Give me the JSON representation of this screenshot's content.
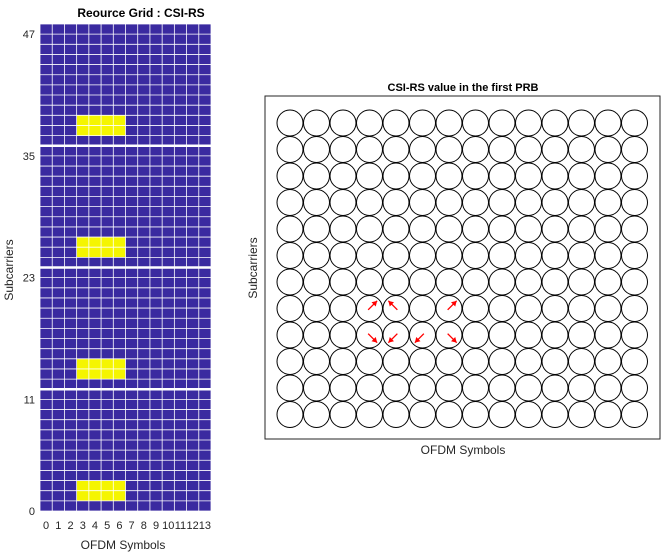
{
  "chart_data": [
    {
      "type": "heatmap",
      "title": "Reource Grid : CSI-RS",
      "xlabel": "OFDM Symbols",
      "ylabel": "Subcarriers",
      "n_symbols": 14,
      "n_subcarriers": 48,
      "x_ticks": [
        "0",
        "1",
        "2",
        "3",
        "4",
        "5",
        "6",
        "7",
        "8",
        "9",
        "10",
        "11",
        "12",
        "13"
      ],
      "y_ticks": [
        "0",
        "11",
        "23",
        "35",
        "47"
      ],
      "background_color": "#3a2aa0",
      "grid_color": "#ffffff",
      "highlight_color": "#f5f500",
      "csi_rs_regions": [
        {
          "symbols": [
            3,
            6
          ],
          "subcarriers": [
            1,
            2
          ]
        },
        {
          "symbols": [
            3,
            6
          ],
          "subcarriers": [
            13,
            14
          ]
        },
        {
          "symbols": [
            3,
            6
          ],
          "subcarriers": [
            25,
            26
          ]
        },
        {
          "symbols": [
            3,
            6
          ],
          "subcarriers": [
            37,
            38
          ]
        }
      ],
      "prb_boundaries": [
        12,
        24,
        36
      ]
    },
    {
      "type": "scatter",
      "title": "CSI-RS value in the first PRB",
      "xlabel": "OFDM Symbols",
      "ylabel": "Subcarriers",
      "grid_cols": 14,
      "grid_rows": 12,
      "arrow_color": "#ff0000",
      "arrows": [
        {
          "col": 3,
          "row": 4,
          "dir": "up-right"
        },
        {
          "col": 4,
          "row": 4,
          "dir": "up-left"
        },
        {
          "col": 3,
          "row": 3,
          "dir": "down-right"
        },
        {
          "col": 4,
          "row": 3,
          "dir": "down-left"
        },
        {
          "col": 5,
          "row": 3,
          "dir": "down-left"
        },
        {
          "col": 6,
          "row": 4,
          "dir": "up-right"
        },
        {
          "col": 6,
          "row": 3,
          "dir": "down-right"
        }
      ]
    }
  ]
}
